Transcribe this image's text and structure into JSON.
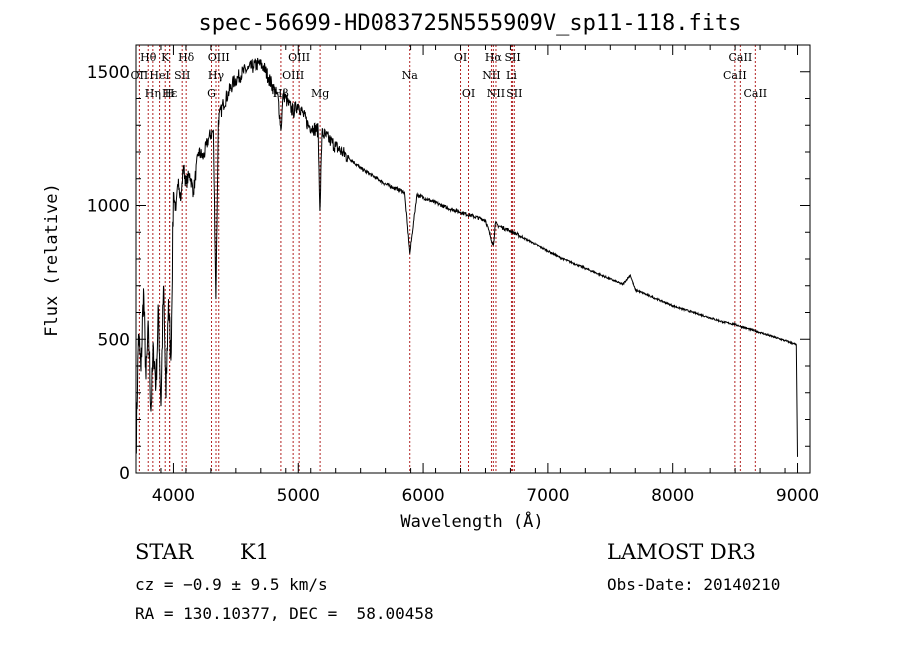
{
  "chart_data": {
    "type": "line",
    "title": "spec-56699-HD083725N555909V_sp11-118.fits",
    "xlabel": "Wavelength (Å)",
    "ylabel": "Flux (relative)",
    "xlim": [
      3700,
      9100
    ],
    "ylim": [
      0,
      1600
    ],
    "xticks": [
      4000,
      5000,
      6000,
      7000,
      8000,
      9000
    ],
    "yticks": [
      0,
      500,
      1000,
      1500
    ],
    "xtick_labels": [
      "4000",
      "5000",
      "6000",
      "7000",
      "8000",
      "9000"
    ],
    "ytick_labels": [
      "0",
      "500",
      "1000",
      "1500"
    ],
    "series": [
      {
        "name": "flux",
        "x": [
          3700,
          3720,
          3740,
          3760,
          3780,
          3800,
          3820,
          3840,
          3860,
          3880,
          3900,
          3920,
          3940,
          3960,
          3980,
          4000,
          4020,
          4040,
          4060,
          4080,
          4100,
          4130,
          4160,
          4200,
          4240,
          4280,
          4320,
          4340,
          4360,
          4400,
          4440,
          4480,
          4520,
          4560,
          4600,
          4640,
          4680,
          4720,
          4760,
          4800,
          4840,
          4861,
          4880,
          4920,
          4960,
          5000,
          5040,
          5080,
          5120,
          5160,
          5173,
          5190,
          5220,
          5260,
          5300,
          5350,
          5400,
          5450,
          5500,
          5550,
          5600,
          5650,
          5700,
          5750,
          5800,
          5850,
          5893,
          5950,
          6000,
          6100,
          6200,
          6300,
          6400,
          6500,
          6563,
          6580,
          6600,
          6700,
          6800,
          6900,
          7000,
          7100,
          7200,
          7300,
          7400,
          7500,
          7600,
          7660,
          7700,
          7800,
          7900,
          8000,
          8100,
          8200,
          8300,
          8400,
          8500,
          8600,
          8700,
          8800,
          8900,
          8990,
          9000
        ],
        "y": [
          80,
          520,
          380,
          690,
          350,
          540,
          230,
          470,
          330,
          610,
          250,
          700,
          280,
          650,
          420,
          1050,
          980,
          1100,
          1020,
          1150,
          1080,
          1120,
          1050,
          1200,
          1180,
          1250,
          1280,
          650,
          1320,
          1380,
          1420,
          1460,
          1480,
          1500,
          1510,
          1520,
          1530,
          1520,
          1480,
          1440,
          1400,
          1280,
          1420,
          1380,
          1350,
          1380,
          1340,
          1300,
          1290,
          1280,
          980,
          1270,
          1260,
          1240,
          1220,
          1200,
          1180,
          1160,
          1140,
          1125,
          1110,
          1095,
          1080,
          1070,
          1060,
          1050,
          820,
          1040,
          1030,
          1010,
          990,
          975,
          960,
          945,
          850,
          935,
          925,
          905,
          880,
          855,
          830,
          805,
          785,
          765,
          745,
          725,
          705,
          740,
          685,
          665,
          645,
          625,
          610,
          595,
          580,
          565,
          555,
          540,
          525,
          510,
          495,
          480,
          60
        ]
      }
    ],
    "line_markers": [
      {
        "label": "Hθ",
        "x": 3798,
        "row": 0
      },
      {
        "label": "OII",
        "x": 3727,
        "row": 1
      },
      {
        "label": "Hε",
        "x": 3970,
        "row": 2
      },
      {
        "label": "K",
        "x": 3934,
        "row": 0
      },
      {
        "label": "HeI",
        "x": 3889,
        "row": 1
      },
      {
        "label": "Hη",
        "x": 3835,
        "row": 2
      },
      {
        "label": "Hδ",
        "x": 4102,
        "row": 0
      },
      {
        "label": "SII",
        "x": 4070,
        "row": 1
      },
      {
        "label": "H",
        "x": 3969,
        "row": 2
      },
      {
        "label": "OIII",
        "x": 4363,
        "row": 0
      },
      {
        "label": "Hγ",
        "x": 4341,
        "row": 1
      },
      {
        "label": "G",
        "x": 4305,
        "row": 2
      },
      {
        "label": "OIII",
        "x": 5007,
        "row": 0
      },
      {
        "label": "OIII",
        "x": 4959,
        "row": 1
      },
      {
        "label": "Hβ",
        "x": 4861,
        "row": 2
      },
      {
        "label": "Mg",
        "x": 5175,
        "row": 2
      },
      {
        "label": "Na",
        "x": 5893,
        "row": 1
      },
      {
        "label": "OI",
        "x": 6300,
        "row": 0
      },
      {
        "label": "OI",
        "x": 6364,
        "row": 2
      },
      {
        "label": "Hα",
        "x": 6563,
        "row": 0
      },
      {
        "label": "NII",
        "x": 6548,
        "row": 1
      },
      {
        "label": "NII",
        "x": 6584,
        "row": 2
      },
      {
        "label": "SII",
        "x": 6717,
        "row": 0
      },
      {
        "label": "Li",
        "x": 6708,
        "row": 1
      },
      {
        "label": "SII",
        "x": 6731,
        "row": 2
      },
      {
        "label": "CaII",
        "x": 8542,
        "row": 0
      },
      {
        "label": "CaII",
        "x": 8498,
        "row": 1
      },
      {
        "label": "CaII",
        "x": 8662,
        "row": 2
      }
    ]
  },
  "info": {
    "object_class": "STAR",
    "subclass": "K1",
    "survey": "LAMOST DR3",
    "cz": "cz = −0.9 ± 9.5 km/s",
    "obs_date": "Obs-Date: 20140210",
    "coords": "RA = 130.10377, DEC =  58.00458"
  },
  "colors": {
    "lines": "#b22222",
    "spectrum": "#000000"
  }
}
